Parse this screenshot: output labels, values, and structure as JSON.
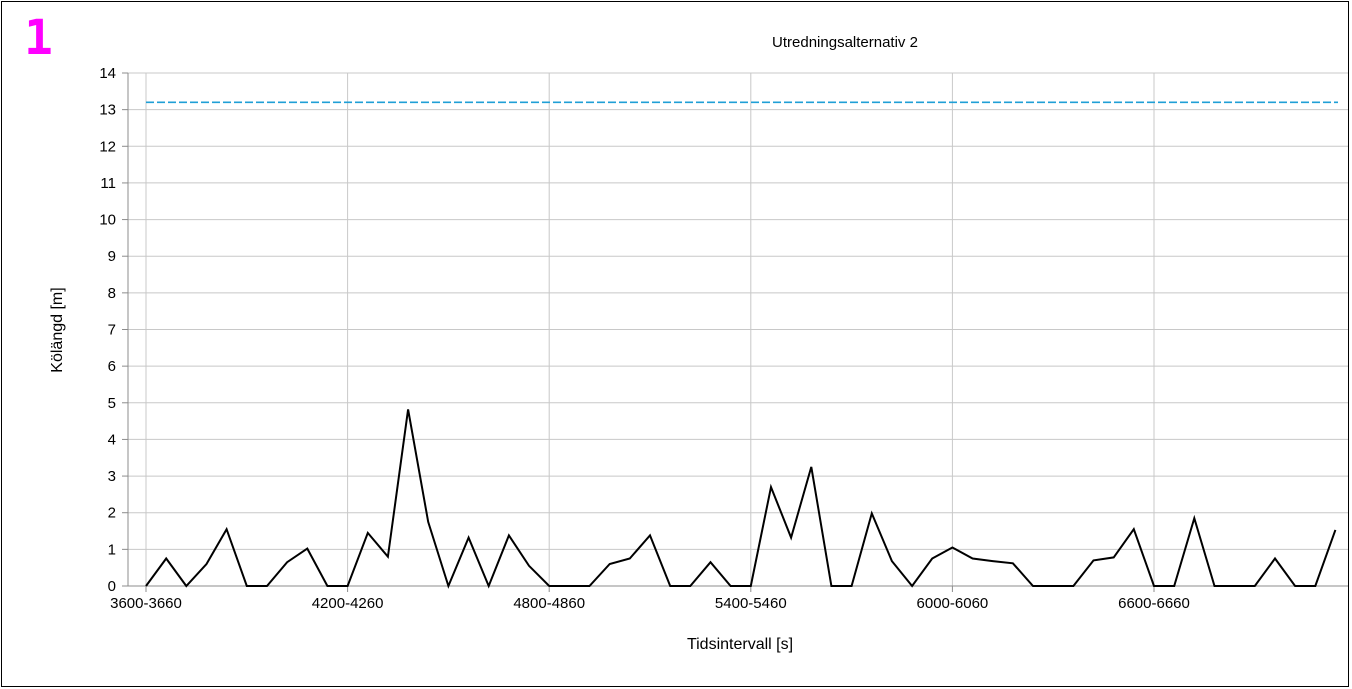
{
  "badge": "1",
  "chart_data": {
    "type": "line",
    "title": "Utredningsalternativ 2",
    "xlabel": "Tidsintervall [s]",
    "ylabel": "Kölängd [m]",
    "ylim": [
      0,
      14
    ],
    "yticks": [
      0,
      1,
      2,
      3,
      4,
      5,
      6,
      7,
      8,
      9,
      10,
      11,
      12,
      13,
      14
    ],
    "xtick_labels": [
      "3600-3660",
      "4200-4260",
      "4800-4860",
      "5400-5460",
      "6000-6060",
      "6600-6660"
    ],
    "grid": true,
    "series": [
      {
        "color": "#000000",
        "style": "solid",
        "values": [
          0,
          0.75,
          0,
          0.6,
          1.55,
          0,
          0,
          0.65,
          1.02,
          0,
          0,
          1.45,
          0.8,
          4.82,
          1.75,
          0,
          1.32,
          0,
          1.38,
          0.55,
          0,
          0,
          0,
          0.6,
          0.75,
          1.38,
          0,
          0,
          0.65,
          0,
          0,
          2.7,
          1.32,
          3.25,
          0,
          0,
          1.98,
          0.68,
          0,
          0.75,
          1.05,
          0.75,
          0.68,
          0.62,
          0,
          0,
          0,
          0.7,
          0.78,
          1.55,
          0,
          0,
          1.85,
          0,
          0,
          0,
          0.75,
          0,
          0,
          1.53
        ]
      },
      {
        "color": "#1f9fd6",
        "style": "dashed",
        "values": [
          13.2,
          13.2
        ]
      }
    ]
  }
}
